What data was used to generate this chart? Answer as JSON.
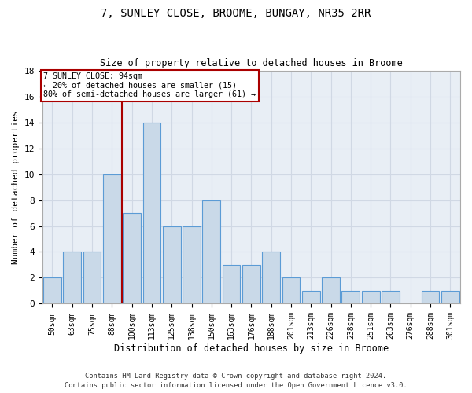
{
  "title1": "7, SUNLEY CLOSE, BROOME, BUNGAY, NR35 2RR",
  "title2": "Size of property relative to detached houses in Broome",
  "xlabel": "Distribution of detached houses by size in Broome",
  "ylabel": "Number of detached properties",
  "categories": [
    "50sqm",
    "63sqm",
    "75sqm",
    "88sqm",
    "100sqm",
    "113sqm",
    "125sqm",
    "138sqm",
    "150sqm",
    "163sqm",
    "176sqm",
    "188sqm",
    "201sqm",
    "213sqm",
    "226sqm",
    "238sqm",
    "251sqm",
    "263sqm",
    "276sqm",
    "288sqm",
    "301sqm"
  ],
  "values": [
    2,
    4,
    4,
    10,
    7,
    14,
    6,
    6,
    8,
    3,
    3,
    4,
    2,
    1,
    2,
    1,
    1,
    1,
    0,
    1,
    1
  ],
  "bar_color": "#c9d9e8",
  "bar_edge_color": "#5b9bd5",
  "grid_color": "#d0d8e4",
  "bg_color": "#e8eef5",
  "vline_color": "#aa0000",
  "annotation_line1": "7 SUNLEY CLOSE: 94sqm",
  "annotation_line2": "← 20% of detached houses are smaller (15)",
  "annotation_line3": "80% of semi-detached houses are larger (61) →",
  "annotation_box_color": "#ffffff",
  "annotation_box_edge": "#aa0000",
  "ylim": [
    0,
    18
  ],
  "yticks": [
    0,
    2,
    4,
    6,
    8,
    10,
    12,
    14,
    16,
    18
  ],
  "footer1": "Contains HM Land Registry data © Crown copyright and database right 2024.",
  "footer2": "Contains public sector information licensed under the Open Government Licence v3.0."
}
